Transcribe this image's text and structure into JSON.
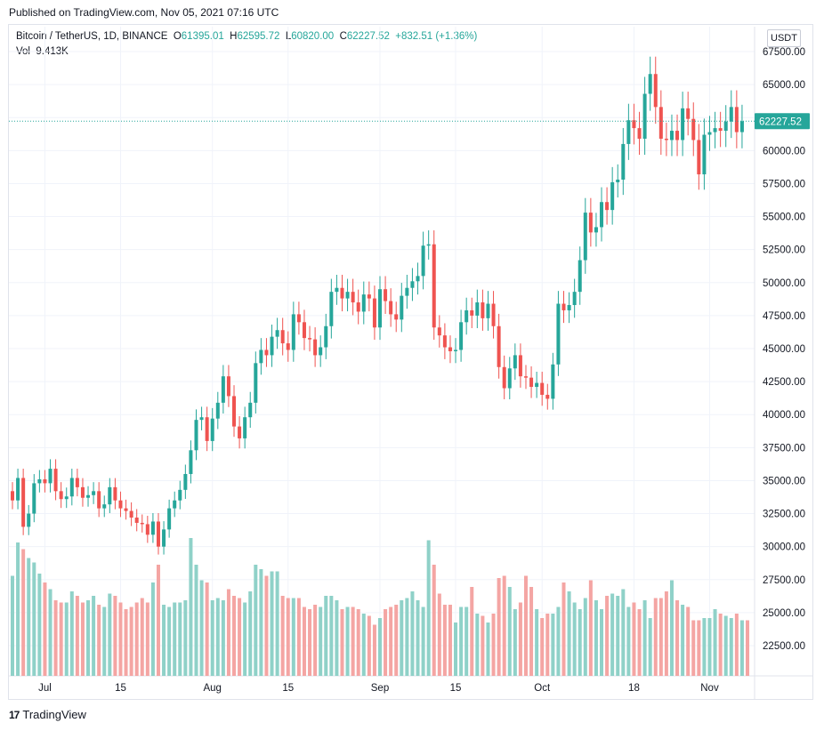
{
  "header": {
    "published": "Published on TradingView.com, Nov 05, 2021 07:16 UTC"
  },
  "legend": {
    "symbol": "Bitcoin / TetherUS, 1D, BINANCE",
    "o_label": "O",
    "o_value": "61395.01",
    "h_label": "H",
    "h_value": "62595.72",
    "l_label": "L",
    "l_value": "60820.00",
    "c_label": "C",
    "c_value": "62227.52",
    "change": "+832.51 (+1.36%)",
    "vol_label": "Vol",
    "vol_value": "9.413K"
  },
  "toolbar": {
    "unit": "USDT"
  },
  "footer": {
    "logo_mark": "17",
    "logo_text": "TradingView"
  },
  "colors": {
    "up": "#26a69a",
    "down": "#ef5350",
    "up_vol": "#8fd1c8",
    "down_vol": "#f4a5a3",
    "grid": "#f0f3fa"
  },
  "chart_data": {
    "type": "candlestick",
    "symbol": "BTCUSDT",
    "interval": "1D",
    "ylim": [
      20000,
      68000
    ],
    "yticks": [
      22500,
      25000,
      27500,
      30000,
      32500,
      35000,
      37500,
      40000,
      42500,
      45000,
      47500,
      50000,
      52500,
      55000,
      57500,
      60000,
      62500,
      65000,
      67500
    ],
    "ytick_labels": [
      "22500.00",
      "25000.00",
      "27500.00",
      "30000.00",
      "32500.00",
      "35000.00",
      "37500.00",
      "40000.00",
      "42500.00",
      "45000.00",
      "47500.00",
      "50000.00",
      "52500.00",
      "55000.00",
      "57500.00",
      "60000.00",
      "65000.00",
      "67500.00"
    ],
    "ytick_label_values": [
      22500,
      25000,
      27500,
      30000,
      32500,
      35000,
      37500,
      40000,
      42500,
      45000,
      47500,
      50000,
      52500,
      55000,
      57500,
      60000,
      65000,
      67500
    ],
    "xtick_labels": [
      {
        "label": "Jul",
        "index": 6
      },
      {
        "label": "15",
        "index": 20
      },
      {
        "label": "Aug",
        "index": 37
      },
      {
        "label": "15",
        "index": 51
      },
      {
        "label": "Sep",
        "index": 68
      },
      {
        "label": "15",
        "index": 82
      },
      {
        "label": "Oct",
        "index": 98
      },
      {
        "label": "18",
        "index": 115
      },
      {
        "label": "Nov",
        "index": 129
      }
    ],
    "last_price": 62227.52,
    "last_price_label": "62227.52",
    "closes": [
      33500,
      35200,
      31500,
      32500,
      34800,
      35100,
      34800,
      35900,
      34200,
      33600,
      33800,
      35200,
      34500,
      33700,
      33900,
      34200,
      32900,
      33200,
      34500,
      33500,
      32900,
      32700,
      32200,
      31800,
      31700,
      30900,
      31900,
      30000,
      31300,
      32900,
      33500,
      34300,
      35500,
      37300,
      39600,
      39800,
      38000,
      39700,
      40900,
      42900,
      41400,
      39100,
      38200,
      39800,
      40900,
      43900,
      44900,
      44500,
      45900,
      46400,
      45400,
      44900,
      47600,
      47000,
      45800,
      45700,
      44500,
      45100,
      46700,
      49300,
      49600,
      48800,
      49300,
      48500,
      47800,
      49100,
      48800,
      46600,
      49500,
      48600,
      47600,
      47200,
      49000,
      49600,
      50100,
      50500,
      52800,
      52900,
      46600,
      46000,
      45100,
      44800,
      44900,
      47000,
      47900,
      47500,
      48500,
      47300,
      48400,
      46700,
      43600,
      42000,
      43500,
      44500,
      42900,
      42800,
      42100,
      42400,
      41500,
      41200,
      43800,
      48400,
      47900,
      48300,
      49300,
      51700,
      55300,
      53800,
      54200,
      56100,
      55500,
      57600,
      57800,
      60500,
      62300,
      61700,
      60900,
      64300,
      65800,
      63300,
      60900,
      60800,
      61500,
      60800,
      63200,
      62400,
      60800,
      58200,
      61200,
      61400,
      61700,
      61500,
      62200,
      63300,
      61400,
      62227
    ],
    "volumes": [
      4.5,
      6.0,
      5.7,
      5.3,
      5.1,
      4.6,
      4.2,
      3.9,
      3.4,
      3.3,
      3.3,
      3.8,
      3.6,
      3.3,
      3.4,
      3.6,
      3.2,
      3.1,
      3.7,
      3.6,
      3.3,
      3.0,
      3.1,
      3.3,
      3.5,
      3.3,
      4.2,
      5.0,
      3.2,
      3.1,
      3.3,
      3.3,
      3.4,
      6.2,
      5.0,
      4.3,
      4.2,
      3.4,
      3.5,
      3.4,
      3.9,
      3.6,
      3.5,
      3.3,
      3.8,
      5.0,
      4.8,
      4.5,
      4.7,
      4.7,
      3.6,
      3.5,
      3.5,
      3.5,
      3.1,
      3.0,
      3.2,
      3.1,
      3.6,
      3.6,
      3.4,
      3.0,
      3.1,
      3.1,
      3.0,
      2.8,
      2.7,
      2.3,
      2.6,
      3.0,
      3.1,
      3.2,
      3.4,
      3.5,
      3.8,
      3.4,
      3.1,
      6.1,
      5.0,
      3.7,
      3.2,
      3.2,
      2.4,
      3.1,
      3.1,
      4.0,
      2.8,
      2.7,
      2.4,
      2.8,
      4.4,
      4.5,
      4.0,
      3.0,
      3.3,
      4.5,
      4.0,
      3.0,
      2.6,
      2.8,
      2.8,
      3.1,
      4.2,
      3.8,
      3.3,
      3.0,
      3.5,
      4.3,
      3.4,
      3.0,
      3.6,
      3.7,
      3.6,
      3.9,
      3.1,
      3.3,
      3.0,
      3.4,
      2.6,
      3.5,
      3.5,
      3.8,
      4.3,
      3.4,
      3.2,
      3.1,
      2.5,
      2.5,
      2.6,
      2.6,
      3.0,
      2.8,
      2.7,
      2.6,
      2.8,
      2.5,
      2.5
    ]
  }
}
